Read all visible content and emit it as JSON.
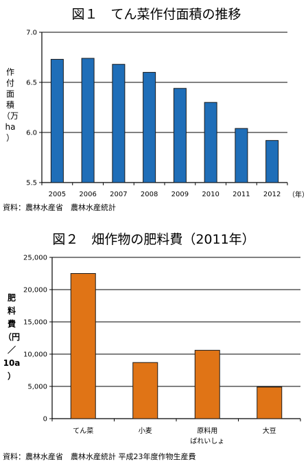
{
  "chart_data": [
    {
      "type": "bar",
      "title": "図１　てん菜作付面積の推移",
      "ylabel": [
        "作",
        "付",
        "面",
        "積",
        "（万",
        "ha",
        "）"
      ],
      "xunit": "（年）",
      "categories": [
        "2005",
        "2006",
        "2007",
        "2008",
        "2009",
        "2010",
        "2011",
        "2012"
      ],
      "values": [
        6.73,
        6.74,
        6.68,
        6.6,
        6.44,
        6.3,
        6.04,
        5.92
      ],
      "ylim": [
        5.5,
        7.0
      ],
      "yticks": [
        "5.5",
        "6.0",
        "6.5",
        "7.0"
      ],
      "grid": true,
      "color": "#1f6eb8",
      "source": "資料：農林水産省　農林水産統計"
    },
    {
      "type": "bar",
      "title": "図２　畑作物の肥料費（2011年）",
      "ylabel": [
        "肥",
        "料",
        "費",
        "（円",
        "／",
        "10a",
        "）"
      ],
      "categories": [
        [
          "てん菜"
        ],
        [
          "小麦"
        ],
        [
          "原料用",
          "ばれいしょ"
        ],
        [
          "大豆"
        ]
      ],
      "values": [
        22500,
        8700,
        10600,
        4900
      ],
      "ylim": [
        0,
        25000
      ],
      "yticks": [
        "0",
        "5,000",
        "10,000",
        "15,000",
        "20,000",
        "25,000"
      ],
      "grid": true,
      "color": "#e07416",
      "source": "資料：農林水産省　農林水産統計 平成23年度作物生産費"
    }
  ]
}
